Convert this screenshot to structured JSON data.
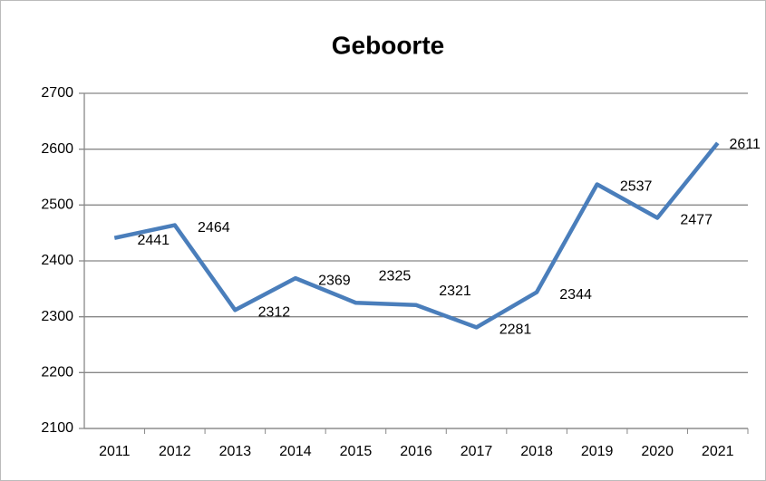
{
  "chart_data": {
    "type": "line",
    "title": "Geboorte",
    "categories": [
      "2011",
      "2012",
      "2013",
      "2014",
      "2015",
      "2016",
      "2017",
      "2018",
      "2019",
      "2020",
      "2021"
    ],
    "series": [
      {
        "name": null,
        "color": "#4a7ebb",
        "values": [
          2441,
          2464,
          2312,
          2369,
          2325,
          2321,
          2281,
          2344,
          2537,
          2477,
          2611
        ]
      }
    ],
    "ylim": [
      2100,
      2700
    ],
    "yticks": [
      2100,
      2200,
      2300,
      2400,
      2500,
      2600,
      2700
    ],
    "grid": true
  }
}
